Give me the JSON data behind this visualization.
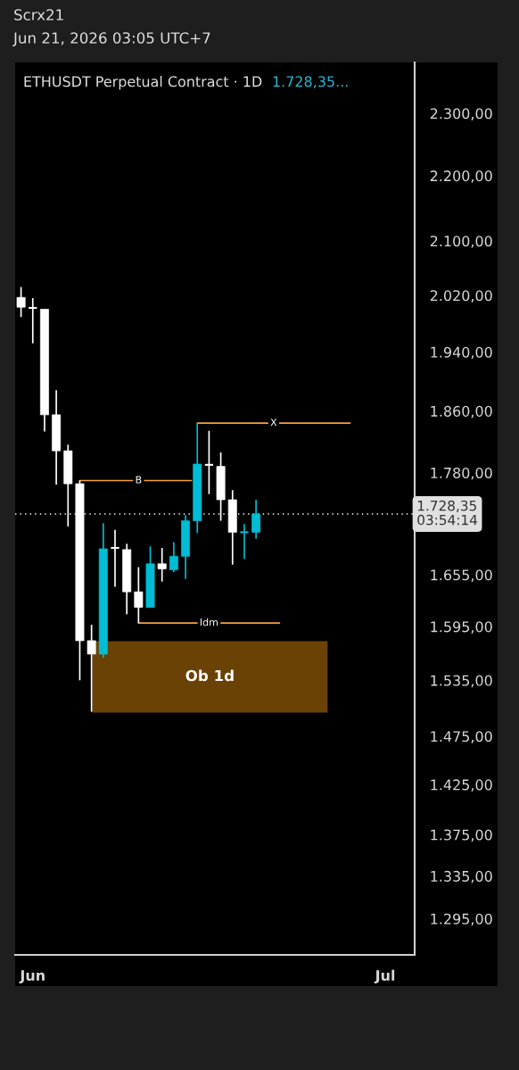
{
  "chart_data": {
    "type": "candlestick",
    "title": "ETHUSDT Perpetual Contract · 1D",
    "subtitle": "1.728,35...",
    "annotations": [
      "Scrx21",
      "Jun 21, 2026 03:05 UTC+7",
      {
        "text": "B",
        "x": "2026-06-10",
        "y": 1770
      },
      {
        "text": "X",
        "x": "2026-06-21T12:00",
        "y": 1844
      },
      {
        "text": "Idm",
        "x": "2026-06-16",
        "y": 1599
      }
    ],
    "x": [
      "2026-05-31",
      "2026-06-01",
      "2026-06-02",
      "2026-06-03",
      "2026-06-04",
      "2026-06-05",
      "2026-06-06",
      "2026-06-07",
      "2026-06-08",
      "2026-06-09",
      "2026-06-10",
      "2026-06-11",
      "2026-06-12",
      "2026-06-13",
      "2026-06-14",
      "2026-06-15",
      "2026-06-16",
      "2026-06-17",
      "2026-06-18",
      "2026-06-19",
      "2026-06-20"
    ],
    "ohlc": [
      [
        2017,
        2032,
        1989,
        2003
      ],
      [
        2002,
        2016,
        1952,
        2002
      ],
      [
        2000,
        2000,
        1833,
        1855
      ],
      [
        1855,
        1888,
        1765,
        1808
      ],
      [
        1808,
        1816,
        1713,
        1766
      ],
      [
        1766,
        1770,
        1535,
        1579
      ],
      [
        1579,
        1597,
        1501,
        1564
      ],
      [
        1564,
        1717,
        1560,
        1686
      ],
      [
        1687,
        1709,
        1641,
        1687
      ],
      [
        1685,
        1692,
        1609,
        1635
      ],
      [
        1635,
        1664,
        1599,
        1617
      ],
      [
        1617,
        1689,
        1617,
        1668
      ],
      [
        1668,
        1687,
        1647,
        1662
      ],
      [
        1661,
        1694,
        1658,
        1677
      ],
      [
        1677,
        1727,
        1650,
        1720
      ],
      [
        1720,
        1844,
        1705,
        1791
      ],
      [
        1790,
        1834,
        1753,
        1790
      ],
      [
        1788,
        1806,
        1720,
        1746
      ],
      [
        1746,
        1758,
        1667,
        1706
      ],
      [
        1706,
        1716,
        1674,
        1706
      ],
      [
        1706,
        1746,
        1698,
        1728.35
      ]
    ],
    "colors": [
      "#ffffff",
      "#ffffff",
      "#ffffff",
      "#ffffff",
      "#ffffff",
      "#ffffff",
      "#ffffff",
      "#00bcd4",
      "#ffffff",
      "#ffffff",
      "#ffffff",
      "#00bcd4",
      "#ffffff",
      "#00bcd4",
      "#00bcd4",
      "#00bcd4",
      "#ffffff",
      "#ffffff",
      "#ffffff",
      "#00bcd4",
      "#00bcd4"
    ],
    "series": [
      {
        "type": "line",
        "color": "#f7a03c",
        "x": [
          "2026-06-05",
          "2026-06-14T12:00"
        ],
        "values": [
          1770,
          1770
        ]
      },
      {
        "type": "line",
        "color": "#f7a03c",
        "x": [
          "2026-06-15",
          "2026-06-28"
        ],
        "values": [
          1844,
          1844
        ]
      },
      {
        "type": "line",
        "color": "#f7a03c",
        "x": [
          "2026-06-10",
          "2026-06-22"
        ],
        "values": [
          1599,
          1599
        ]
      }
    ],
    "bands": [
      {
        "axis": "y",
        "from": 1500,
        "to": 1578.5,
        "label": "Ob 1d",
        "color": "#6b4205"
      }
    ],
    "ref_lines": [
      {
        "axis": "y",
        "value": 1728.35,
        "label": "1.728,35\n03:54:14",
        "color": "#ffffff",
        "line_style": "dotted"
      }
    ],
    "log": true,
    "xlim": [
      "2026-05-30T12:00",
      "2026-07-03T12:00"
    ],
    "xticks": [
      {
        "value": "2026-06-01",
        "label": "Jun"
      },
      {
        "value": "2026-07-01",
        "label": "Jul"
      }
    ],
    "ylim": [
      1262,
      2385
    ],
    "yticks": [
      {
        "value": 2300,
        "label": "2.300,00"
      },
      {
        "value": 2200,
        "label": "2.200,00"
      },
      {
        "value": 2100,
        "label": "2.100,00"
      },
      {
        "value": 2020,
        "label": "2.020,00"
      },
      {
        "value": 1940,
        "label": "1.940,00"
      },
      {
        "value": 1860,
        "label": "1.860,00"
      },
      {
        "value": 1780,
        "label": "1.780,00"
      },
      {
        "value": 1655,
        "label": "1.655,00"
      },
      {
        "value": 1595,
        "label": "1.595,00"
      },
      {
        "value": 1535,
        "label": "1.535,00"
      },
      {
        "value": 1475,
        "label": "1.475,00"
      },
      {
        "value": 1425,
        "label": "1.425,00"
      },
      {
        "value": 1375,
        "label": "1.375,00"
      },
      {
        "value": 1335,
        "label": "1.335,00"
      },
      {
        "value": 1295,
        "label": "1.295,00"
      }
    ],
    "grid": false
  }
}
